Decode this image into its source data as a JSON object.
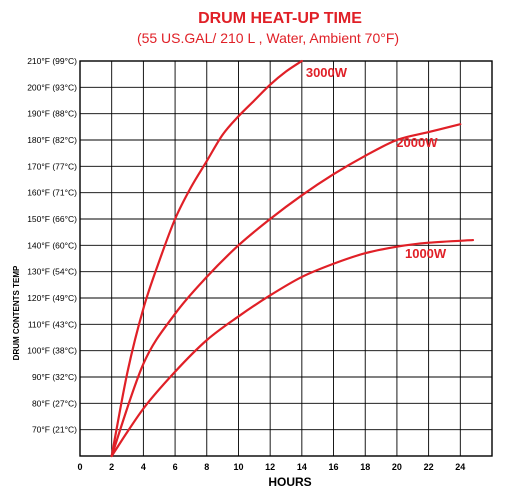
{
  "chart_data": {
    "type": "line",
    "title": "DRUM HEAT-UP TIME",
    "subtitle": "(55 US.GAL/ 210 L , Water, Ambient 70°F)",
    "xlabel": "HOURS",
    "ylabel": "DRUM CONTENTS TEMP",
    "xlim": [
      0,
      26
    ],
    "ylim": [
      60,
      210
    ],
    "grid": true,
    "line_color": "#e02027",
    "title_color": "#e02027",
    "x_ticks": [
      "0",
      "2",
      "4",
      "6",
      "8",
      "10",
      "12",
      "14",
      "16",
      "18",
      "20",
      "22",
      "24"
    ],
    "y_ticks": [
      {
        "value": 70,
        "label": "70°F (21°C)"
      },
      {
        "value": 80,
        "label": "80°F (27°C)"
      },
      {
        "value": 90,
        "label": "90°F (32°C)"
      },
      {
        "value": 100,
        "label": "100°F (38°C)"
      },
      {
        "value": 110,
        "label": "110°F (43°C)"
      },
      {
        "value": 120,
        "label": "120°F (49°C)"
      },
      {
        "value": 130,
        "label": "130°F (54°C)"
      },
      {
        "value": 140,
        "label": "140°F (60°C)"
      },
      {
        "value": 150,
        "label": "150°F (66°C)"
      },
      {
        "value": 160,
        "label": "160°F (71°C)"
      },
      {
        "value": 170,
        "label": "170°F (77°C)"
      },
      {
        "value": 180,
        "label": "180°F (82°C)"
      },
      {
        "value": 190,
        "label": "190°F (88°C)"
      },
      {
        "value": 200,
        "label": "200°F (93°C)"
      },
      {
        "value": 210,
        "label": "210°F (99°C)"
      }
    ],
    "series": [
      {
        "name": "3000W",
        "x": [
          2,
          3,
          4,
          5,
          6,
          7,
          8,
          9,
          10,
          11,
          12,
          13,
          14
        ],
        "y": [
          60,
          92,
          116,
          134,
          150,
          162,
          172,
          182,
          189,
          195,
          201,
          206,
          210
        ]
      },
      {
        "name": "2000W",
        "x": [
          2,
          4,
          6,
          8,
          10,
          12,
          14,
          16,
          18,
          20,
          22,
          24
        ],
        "y": [
          60,
          95,
          114,
          128,
          140,
          150,
          159,
          167,
          174,
          180,
          183,
          186
        ]
      },
      {
        "name": "1000W",
        "x": [
          2,
          4,
          6,
          8,
          10,
          12,
          14,
          16,
          18,
          20,
          22,
          24.8
        ],
        "y": [
          60,
          78,
          92,
          104,
          113,
          121,
          128,
          133,
          137,
          139.5,
          141,
          142
        ]
      }
    ]
  }
}
